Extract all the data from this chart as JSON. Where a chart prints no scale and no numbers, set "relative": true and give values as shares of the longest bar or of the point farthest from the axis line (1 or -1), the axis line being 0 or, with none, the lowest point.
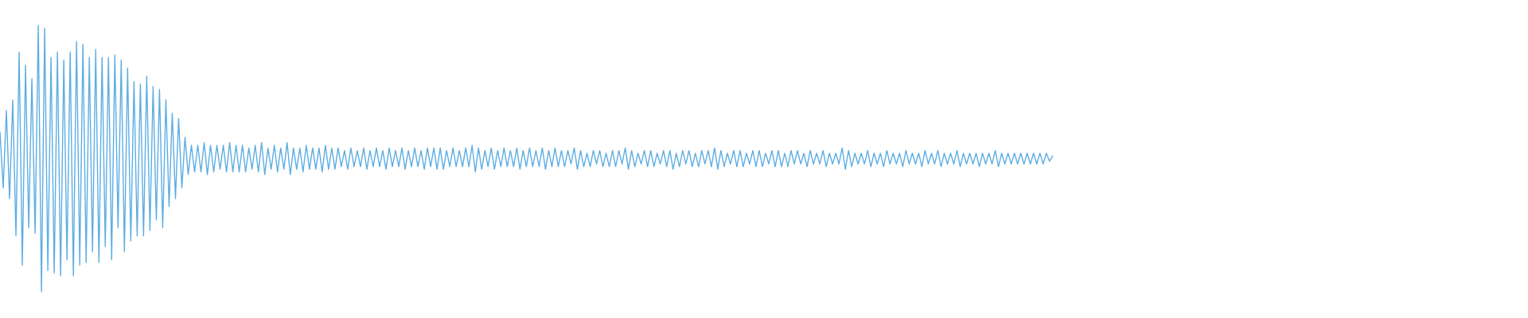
{
  "chart_data": {
    "type": "line",
    "relative": true,
    "color": "#5dade2",
    "categories": [
      null,
      null,
      null,
      null,
      null,
      null,
      null,
      null,
      null,
      null,
      null,
      null,
      null,
      null,
      null,
      null,
      null,
      null,
      null,
      null,
      null,
      null,
      null,
      null,
      null,
      null,
      null,
      null,
      null,
      null,
      null,
      null,
      null,
      null,
      null,
      null,
      null,
      null,
      null,
      null,
      null,
      null,
      null,
      null,
      null,
      null,
      null,
      null,
      null,
      null,
      null,
      null,
      null,
      null,
      null,
      null,
      null,
      null,
      null,
      null,
      null,
      null,
      null,
      null,
      null,
      null,
      null,
      null,
      null,
      null,
      null,
      null,
      null,
      null,
      null,
      null,
      null,
      null,
      null,
      null,
      null,
      null,
      null,
      null,
      null,
      null,
      null,
      null,
      null,
      null,
      null,
      null,
      null,
      null,
      null,
      null,
      null,
      null,
      null,
      null,
      null,
      null,
      null,
      null,
      null,
      null,
      null,
      null,
      null,
      null,
      null,
      null,
      null,
      null,
      null,
      null,
      null,
      null,
      null,
      null,
      null,
      null,
      null,
      null,
      null,
      null,
      null,
      null,
      null,
      null,
      null,
      null,
      null,
      null,
      null,
      null,
      null,
      null,
      null,
      null,
      null,
      null,
      null,
      null,
      null,
      null,
      null,
      null,
      null,
      null,
      null,
      null,
      null,
      null,
      null,
      null,
      null,
      null,
      null,
      null,
      null,
      null,
      null,
      null,
      null,
      null,
      null,
      null,
      null,
      null,
      null,
      null,
      null,
      null,
      null,
      null,
      null,
      null,
      null,
      null,
      null,
      null,
      null,
      null,
      null,
      null,
      null,
      null,
      null,
      null,
      null,
      null,
      null,
      null,
      null,
      null,
      null,
      null,
      null,
      null,
      null,
      null,
      null,
      null,
      null,
      null,
      null,
      null,
      null,
      null,
      null,
      null,
      null,
      null,
      null,
      null,
      null,
      null,
      null,
      null,
      null,
      null,
      null,
      null,
      null,
      null,
      null,
      null,
      null,
      null,
      null,
      null,
      null,
      null,
      null,
      null,
      null,
      null,
      null,
      null,
      null,
      null,
      null,
      null,
      null,
      null,
      null,
      null,
      null,
      null,
      null,
      null,
      null,
      null,
      null,
      null,
      null,
      null,
      null,
      null,
      null,
      null,
      null,
      null,
      null,
      null,
      null,
      null,
      null,
      null,
      null,
      null,
      null,
      null,
      null,
      null,
      null,
      null,
      null,
      null,
      null,
      null,
      null,
      null,
      null,
      null,
      null,
      null,
      null,
      null,
      null,
      null,
      null,
      null,
      null,
      null,
      null,
      null,
      null,
      null,
      null,
      null,
      null,
      null,
      null,
      null,
      null,
      null,
      null,
      null,
      null,
      null,
      null,
      null,
      null,
      null,
      null,
      null,
      null,
      null,
      null,
      null,
      null,
      null,
      null,
      null,
      null,
      null,
      null,
      null,
      null,
      null,
      null,
      null,
      null,
      null,
      null,
      null,
      null,
      null,
      null,
      null,
      null,
      null,
      null,
      null,
      null,
      null,
      null,
      null,
      null,
      null,
      null,
      null,
      null,
      null,
      null,
      null,
      null,
      null,
      null,
      null,
      null,
      null,
      null,
      null,
      null,
      null,
      null,
      null,
      null,
      null,
      null,
      null,
      null,
      null,
      null,
      null,
      null,
      null,
      null,
      null,
      null,
      null,
      null,
      null,
      null,
      null,
      null,
      null,
      null,
      null,
      null,
      null,
      null,
      null,
      null,
      null,
      null,
      null,
      null,
      null,
      null,
      null,
      null,
      null,
      null,
      null,
      null,
      null,
      null,
      null,
      null,
      null,
      null,
      null,
      null,
      null,
      null,
      null,
      null,
      null,
      null,
      null,
      null,
      null,
      null,
      null,
      null,
      null,
      null,
      null,
      null,
      null,
      null,
      null,
      null,
      null,
      null,
      null,
      null,
      null,
      null,
      null,
      null,
      null,
      null,
      null,
      null,
      null,
      null,
      null,
      null,
      null,
      null,
      null,
      null,
      null,
      null,
      null,
      null,
      null,
      null,
      null,
      null,
      null,
      null,
      null,
      null,
      null,
      null,
      null,
      null,
      null,
      null,
      null,
      null,
      null,
      null,
      null
    ],
    "values": [
      0.6,
      0.39,
      0.68,
      0.35,
      0.72,
      0.21,
      0.9,
      0.1,
      0.85,
      0.24,
      0.8,
      0.22,
      1.0,
      0.0,
      0.99,
      0.08,
      0.88,
      0.07,
      0.9,
      0.06,
      0.87,
      0.12,
      0.9,
      0.06,
      0.94,
      0.1,
      0.93,
      0.11,
      0.88,
      0.15,
      0.91,
      0.11,
      0.88,
      0.17,
      0.88,
      0.12,
      0.89,
      0.24,
      0.87,
      0.15,
      0.84,
      0.19,
      0.79,
      0.21,
      0.78,
      0.21,
      0.81,
      0.23,
      0.77,
      0.27,
      0.76,
      0.24,
      0.72,
      0.32,
      0.67,
      0.35,
      0.65,
      0.39,
      0.58,
      0.44,
      0.55,
      0.45,
      0.55,
      0.45,
      0.56,
      0.44,
      0.55,
      0.45,
      0.55,
      0.46,
      0.55,
      0.45,
      0.56,
      0.45,
      0.55,
      0.45,
      0.55,
      0.45,
      0.54,
      0.46,
      0.55,
      0.45,
      0.56,
      0.44,
      0.54,
      0.46,
      0.55,
      0.45,
      0.54,
      0.46,
      0.56,
      0.44,
      0.54,
      0.46,
      0.54,
      0.45,
      0.55,
      0.46,
      0.54,
      0.46,
      0.54,
      0.45,
      0.55,
      0.46,
      0.54,
      0.46,
      0.54,
      0.47,
      0.53,
      0.46,
      0.54,
      0.47,
      0.53,
      0.47,
      0.54,
      0.46,
      0.53,
      0.47,
      0.54,
      0.47,
      0.53,
      0.46,
      0.54,
      0.47,
      0.53,
      0.47,
      0.54,
      0.46,
      0.53,
      0.47,
      0.54,
      0.47,
      0.53,
      0.46,
      0.54,
      0.47,
      0.54,
      0.46,
      0.54,
      0.46,
      0.53,
      0.47,
      0.54,
      0.47,
      0.53,
      0.47,
      0.54,
      0.47,
      0.55,
      0.45,
      0.54,
      0.46,
      0.53,
      0.47,
      0.54,
      0.46,
      0.53,
      0.47,
      0.54,
      0.47,
      0.53,
      0.47,
      0.54,
      0.46,
      0.53,
      0.47,
      0.54,
      0.47,
      0.53,
      0.47,
      0.54,
      0.46,
      0.53,
      0.47,
      0.54,
      0.47,
      0.53,
      0.47,
      0.53,
      0.48,
      0.54,
      0.46,
      0.53,
      0.47,
      0.52,
      0.47,
      0.53,
      0.48,
      0.53,
      0.47,
      0.52,
      0.47,
      0.53,
      0.47,
      0.53,
      0.48,
      0.54,
      0.46,
      0.53,
      0.47,
      0.52,
      0.48,
      0.53,
      0.47,
      0.53,
      0.47,
      0.52,
      0.48,
      0.53,
      0.47,
      0.53,
      0.46,
      0.52,
      0.47,
      0.53,
      0.48,
      0.53,
      0.47,
      0.52,
      0.47,
      0.53,
      0.48,
      0.53,
      0.47,
      0.54,
      0.46,
      0.53,
      0.47,
      0.52,
      0.48,
      0.53,
      0.47,
      0.53,
      0.47,
      0.52,
      0.48,
      0.53,
      0.47,
      0.53,
      0.47,
      0.52,
      0.48,
      0.53,
      0.47,
      0.53,
      0.47,
      0.52,
      0.47,
      0.53,
      0.48,
      0.53,
      0.48,
      0.52,
      0.47,
      0.53,
      0.48,
      0.52,
      0.48,
      0.53,
      0.47,
      0.52,
      0.48,
      0.52,
      0.48,
      0.54,
      0.46,
      0.53,
      0.47,
      0.52,
      0.48,
      0.52,
      0.48,
      0.53,
      0.47,
      0.52,
      0.48,
      0.52,
      0.47,
      0.53,
      0.48,
      0.52,
      0.48,
      0.52,
      0.47,
      0.53,
      0.48,
      0.52,
      0.48,
      0.52,
      0.47,
      0.53,
      0.48,
      0.52,
      0.48,
      0.53,
      0.47,
      0.52,
      0.48,
      0.52,
      0.48,
      0.53,
      0.47,
      0.52,
      0.48,
      0.52,
      0.48,
      0.52,
      0.47,
      0.52,
      0.48,
      0.52,
      0.48,
      0.53,
      0.47,
      0.52,
      0.48,
      0.52,
      0.48,
      0.52,
      0.48,
      0.52,
      0.48,
      0.52,
      0.48,
      0.52,
      0.48,
      0.52,
      0.48,
      0.52,
      0.49,
      0.51,
      null,
      null,
      null,
      null,
      null,
      null,
      null,
      null,
      null,
      null,
      null,
      null,
      null,
      null,
      null,
      null,
      null,
      null,
      null,
      null,
      null,
      null,
      null,
      null,
      null,
      null,
      null,
      null,
      null,
      null,
      null,
      null,
      null,
      null,
      null,
      null,
      null,
      null,
      null,
      null,
      null,
      null,
      null,
      null,
      null,
      null,
      null,
      null,
      null,
      null,
      null,
      null,
      null,
      null,
      null,
      null,
      null,
      null,
      null,
      null,
      null,
      null,
      null,
      null,
      null,
      null,
      null,
      null,
      null,
      null,
      null,
      null,
      null,
      null,
      null,
      null,
      null,
      null,
      null,
      null,
      null,
      null,
      null,
      null,
      null,
      null,
      null,
      null,
      null,
      null,
      null,
      null,
      null,
      null,
      null,
      null,
      null,
      null,
      null,
      null,
      null,
      null,
      null,
      null,
      null,
      null,
      null,
      null,
      null,
      null,
      null,
      null,
      null,
      null,
      null,
      null,
      null,
      null,
      null,
      null,
      null,
      null,
      null,
      null,
      null,
      null,
      null,
      null,
      null,
      null,
      null,
      null,
      null,
      null,
      null,
      null,
      null,
      null,
      null,
      null,
      null,
      null,
      null,
      null,
      null,
      null,
      null,
      null,
      null
    ]
  }
}
